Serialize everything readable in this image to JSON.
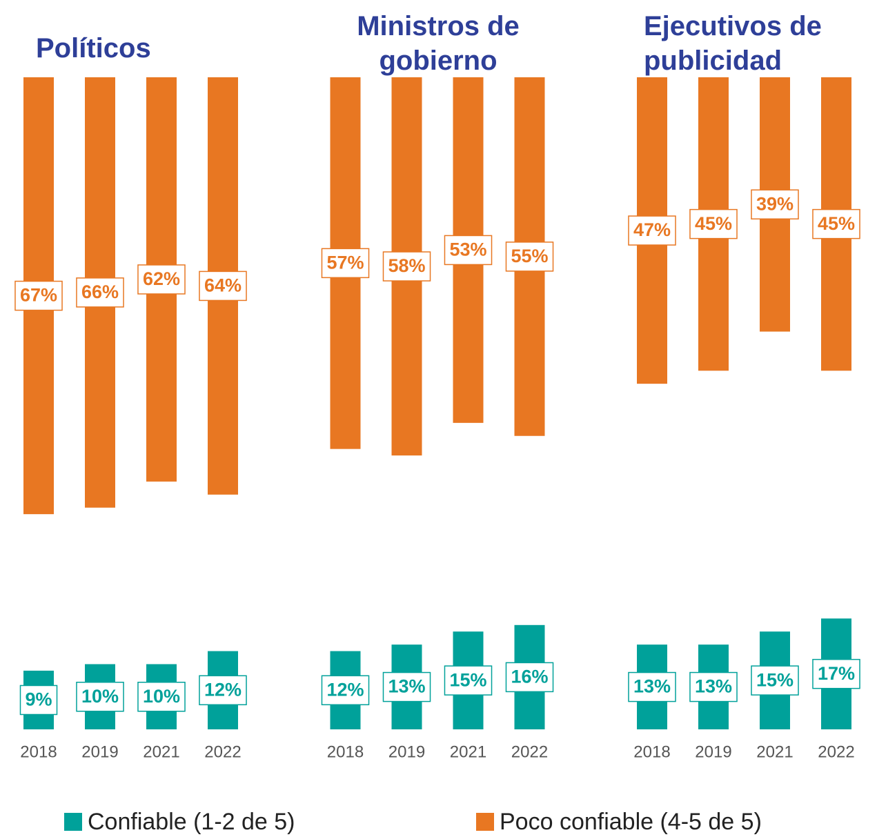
{
  "chart_data": {
    "type": "bar",
    "facets": [
      "Políticos",
      "Ministros de gobierno",
      "Ejecutivos de publicidad"
    ],
    "categories": [
      "2018",
      "2019",
      "2021",
      "2022"
    ],
    "series": [
      {
        "name": "Confiable (1-2 de 5)",
        "color": "#00a19a",
        "values": [
          [
            9,
            10,
            10,
            12
          ],
          [
            12,
            13,
            15,
            16
          ],
          [
            13,
            13,
            15,
            17
          ]
        ],
        "value_labels": [
          [
            "9%",
            "10%",
            "10%",
            "12%"
          ],
          [
            "12%",
            "13%",
            "15%",
            "16%"
          ],
          [
            "13%",
            "13%",
            "15%",
            "17%"
          ]
        ]
      },
      {
        "name": "Poco confiable (4-5 de 5)",
        "color": "#e87722",
        "values": [
          [
            67,
            66,
            62,
            64
          ],
          [
            57,
            58,
            53,
            55
          ],
          [
            47,
            45,
            39,
            45
          ]
        ],
        "value_labels": [
          [
            "67%",
            "66%",
            "62%",
            "64%"
          ],
          [
            "57%",
            "58%",
            "53%",
            "55%"
          ],
          [
            "47%",
            "45%",
            "39%",
            "45%"
          ]
        ]
      }
    ]
  }
}
